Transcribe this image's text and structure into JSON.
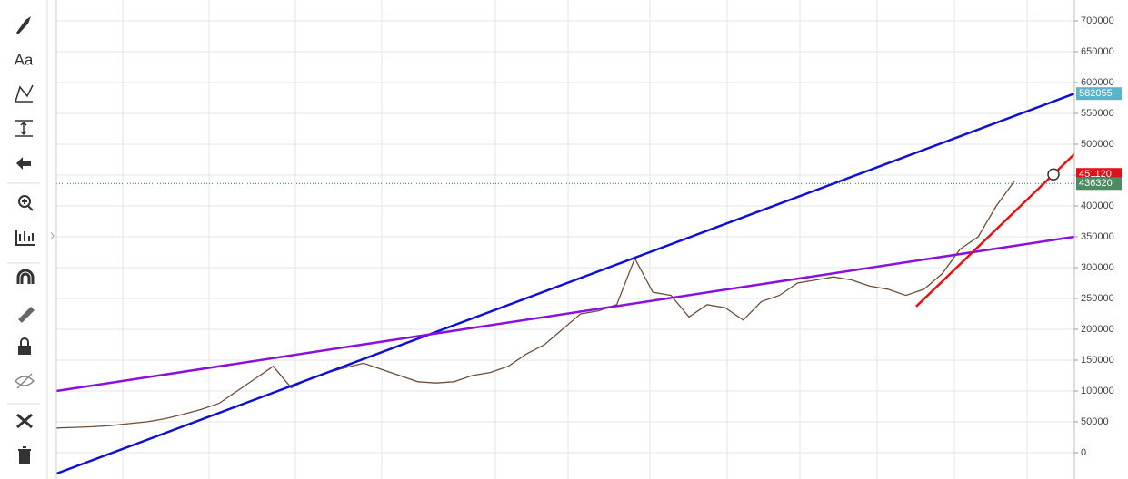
{
  "chart_data": {
    "type": "line",
    "ylim": [
      -42650,
      733800
    ],
    "yticks": [
      0,
      50000,
      100000,
      150000,
      200000,
      250000,
      300000,
      350000,
      400000,
      450000,
      500000,
      550000,
      600000,
      650000,
      700000
    ],
    "grid": true,
    "price_series": {
      "color": "#6b4f3a",
      "values": [
        40000,
        41000,
        42000,
        44000,
        47000,
        50000,
        55000,
        62000,
        70000,
        80000,
        100000,
        120000,
        140000,
        105000,
        120000,
        130000,
        138000,
        145000,
        135000,
        125000,
        115000,
        113000,
        115000,
        125000,
        130000,
        140000,
        160000,
        175000,
        200000,
        225000,
        230000,
        240000,
        315000,
        260000,
        255000,
        220000,
        240000,
        235000,
        215000,
        245000,
        255000,
        275000,
        280000,
        285000,
        280000,
        270000,
        265000,
        255000,
        265000,
        290000,
        330000,
        350000,
        400000,
        440000
      ]
    },
    "trend_lines": [
      {
        "color": "#1010d0",
        "start": -34000,
        "end": 582055
      },
      {
        "color": "#8a10e0",
        "start": 100000,
        "end": 350000
      },
      {
        "color": "#e81010",
        "start": 237000,
        "end": 484000
      }
    ],
    "price_labels": [
      {
        "value": 582055,
        "color": "#5ab4c8"
      },
      {
        "value": 451120,
        "color": "#e0101a"
      },
      {
        "value": 436320,
        "color": "#4e8a63"
      }
    ],
    "last_price_line": 436320
  }
}
